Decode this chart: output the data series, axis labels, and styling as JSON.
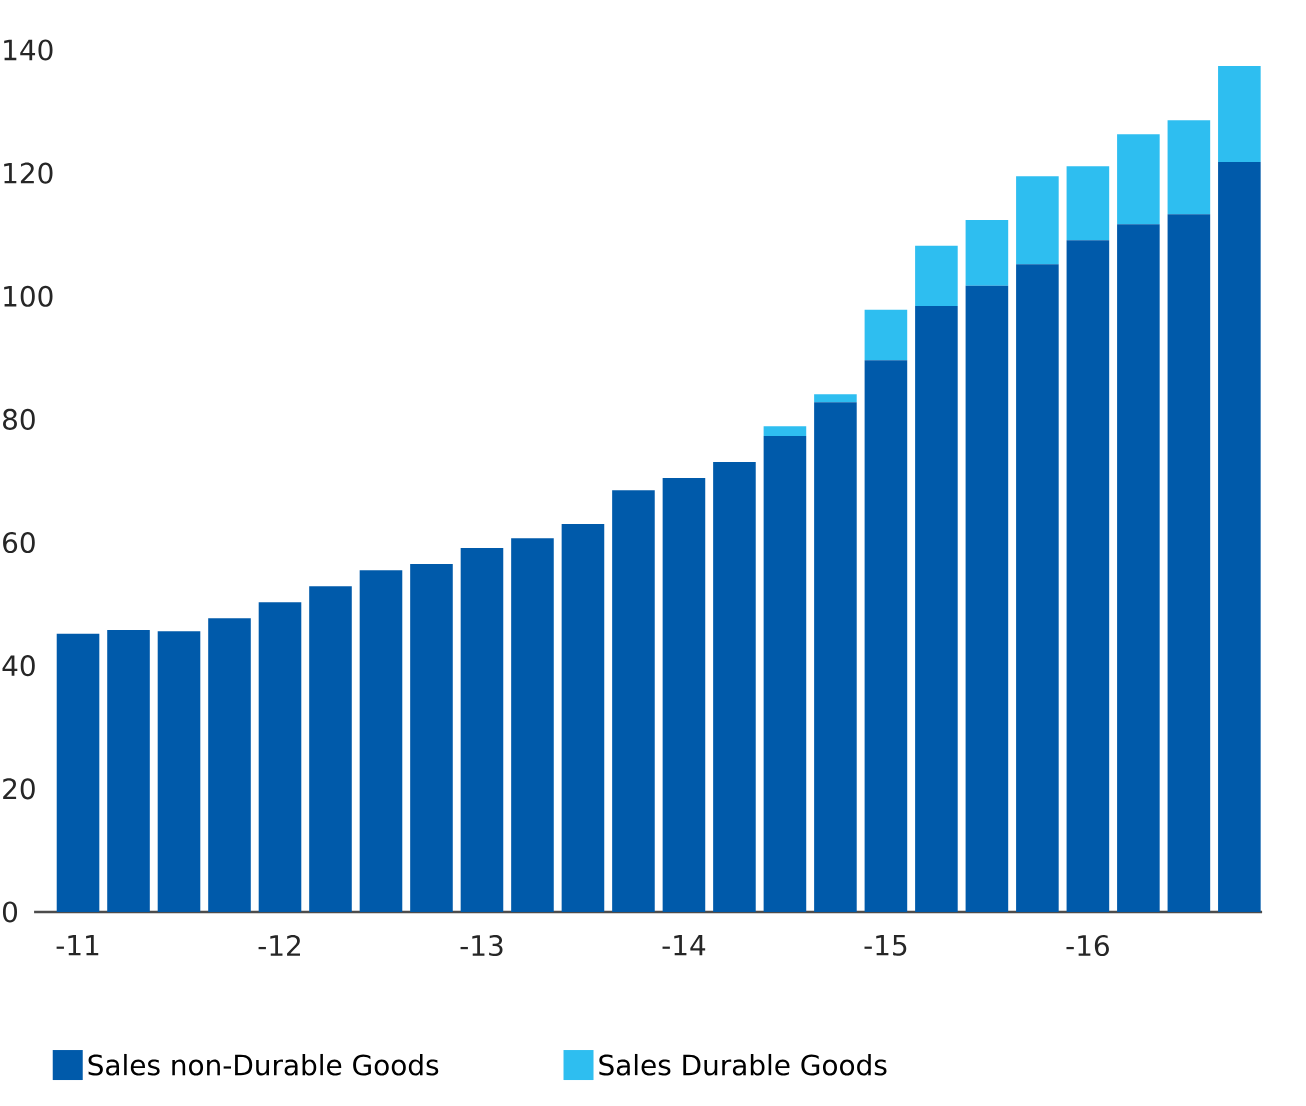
{
  "chart_data": {
    "type": "bar",
    "stacked": true,
    "categories": [
      "-11",
      null,
      null,
      null,
      "-12",
      null,
      null,
      null,
      "-13",
      null,
      null,
      null,
      "-14",
      null,
      null,
      null,
      "-15",
      null,
      null,
      null,
      "-16",
      null,
      null,
      null
    ],
    "series": [
      {
        "name": "Sales non-Durable Goods",
        "color": "#005aaa",
        "values": [
          45.2,
          45.8,
          45.6,
          47.7,
          50.3,
          52.9,
          55.5,
          56.5,
          59.1,
          60.7,
          63.0,
          68.5,
          70.5,
          73.1,
          77.3,
          82.8,
          89.6,
          98.4,
          101.7,
          105.2,
          109.1,
          111.7,
          113.3,
          121.8
        ]
      },
      {
        "name": "Sales Durable Goods",
        "color": "#2ebef0",
        "values": [
          0,
          0,
          0,
          0,
          0,
          0,
          0,
          0,
          0,
          0,
          0,
          0,
          0,
          0,
          1.6,
          1.3,
          8.2,
          9.8,
          10.7,
          14.3,
          12.0,
          14.6,
          15.3,
          15.6
        ]
      }
    ],
    "ylim": [
      0,
      140
    ],
    "yticks": [
      0,
      20,
      40,
      60,
      80,
      100,
      120,
      140
    ],
    "grid": false,
    "legend": "bottom"
  }
}
